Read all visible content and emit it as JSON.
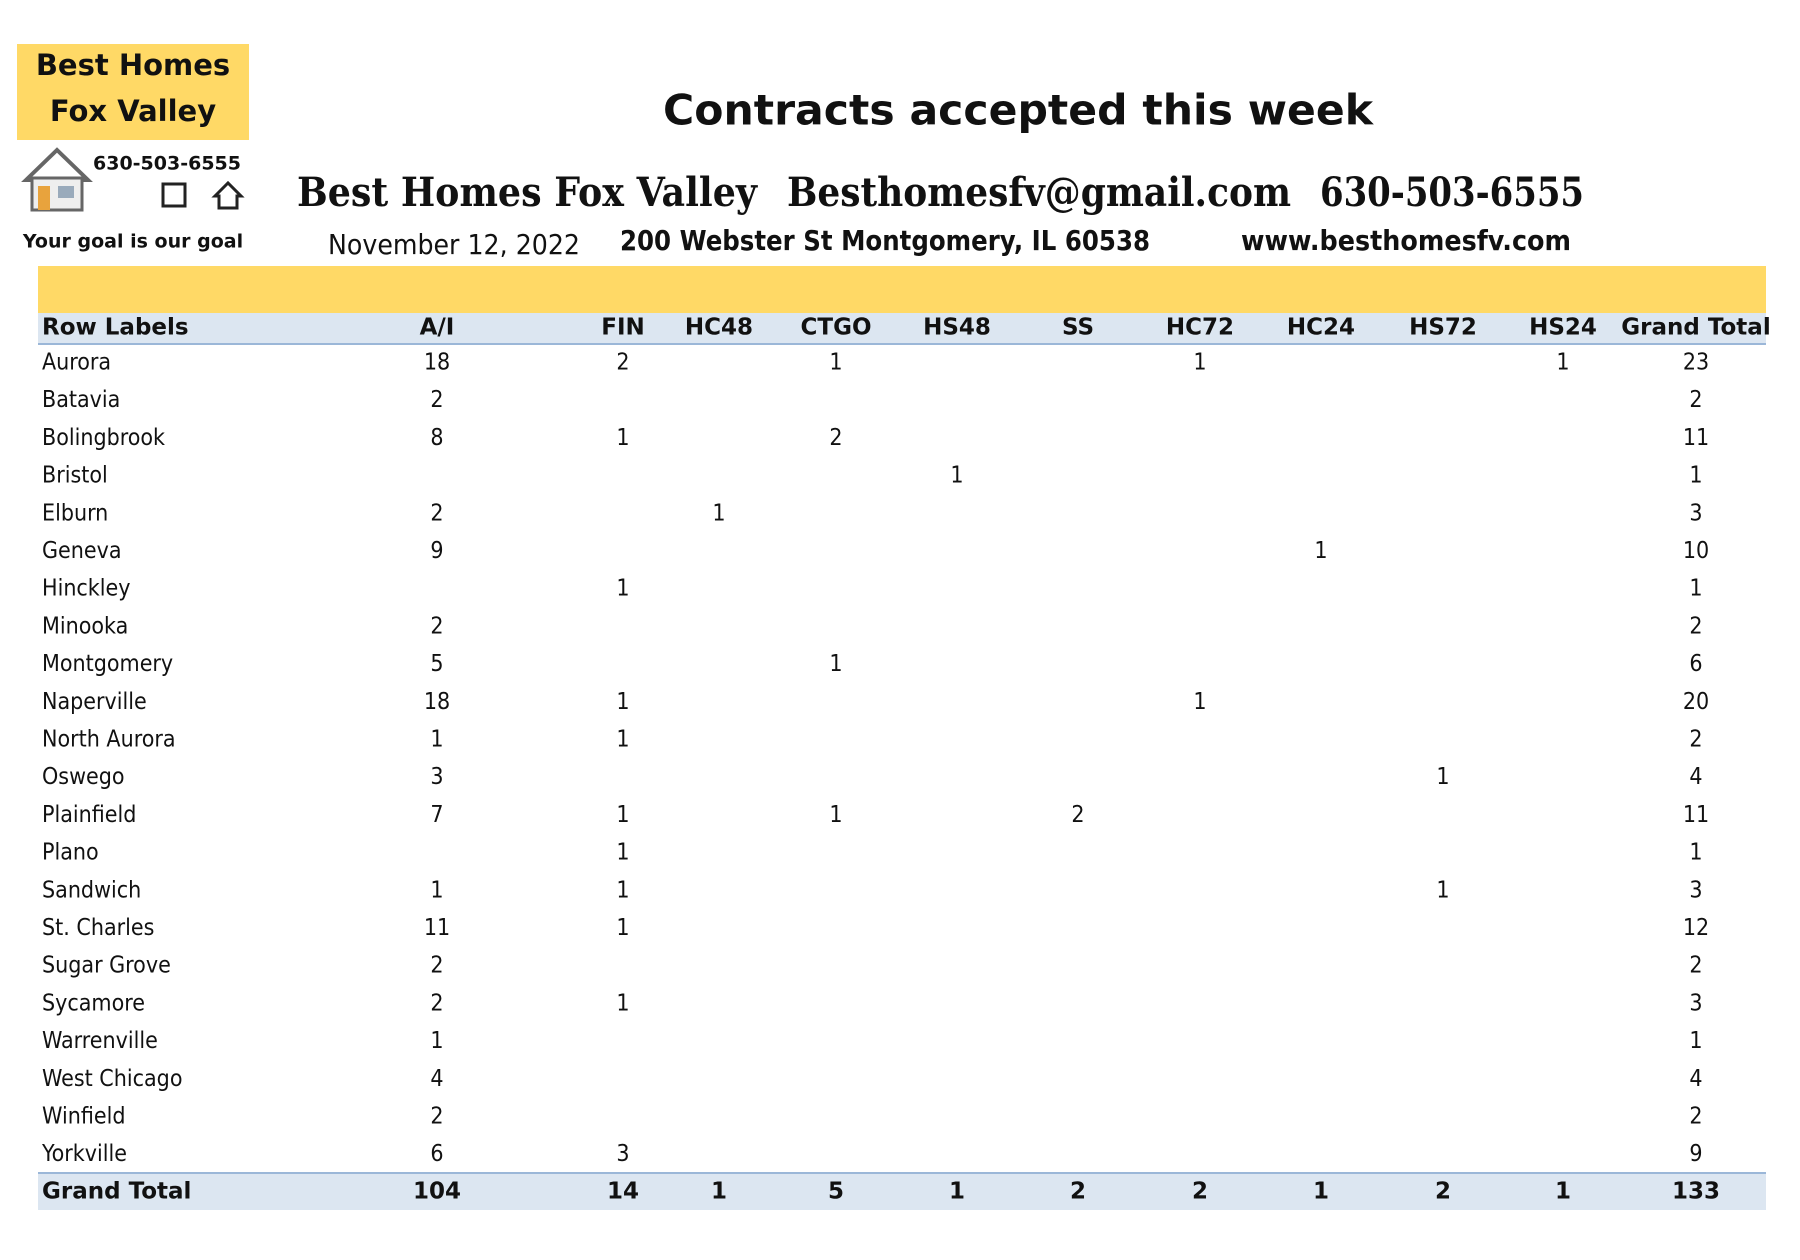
{
  "logo": {
    "line1": "Best Homes",
    "line2": "Fox Valley",
    "phone": "630-503-6555",
    "tagline": "Your goal is our goal"
  },
  "header": {
    "title": "Contracts accepted this week",
    "company": "Best Homes Fox Valley",
    "email": "Besthomesfv@gmail.com",
    "phone": "630-503-6555",
    "date": "November 12, 2022",
    "address": "200 Webster St Montgomery, IL 60538",
    "website": "www.besthomesfv.com"
  },
  "table": {
    "columns": [
      "Row Labels",
      "A/I",
      "FIN",
      "HC48",
      "CTGO",
      "HS48",
      "SS",
      "HC72",
      "HC24",
      "HS72",
      "HS24",
      "Grand Total"
    ],
    "rows": [
      [
        "Aurora",
        18,
        2,
        null,
        1,
        null,
        null,
        1,
        null,
        null,
        1,
        23
      ],
      [
        "Batavia",
        2,
        null,
        null,
        null,
        null,
        null,
        null,
        null,
        null,
        null,
        2
      ],
      [
        "Bolingbrook",
        8,
        1,
        null,
        2,
        null,
        null,
        null,
        null,
        null,
        null,
        11
      ],
      [
        "Bristol",
        null,
        null,
        null,
        null,
        1,
        null,
        null,
        null,
        null,
        null,
        1
      ],
      [
        "Elburn",
        2,
        null,
        1,
        null,
        null,
        null,
        null,
        null,
        null,
        null,
        3
      ],
      [
        "Geneva",
        9,
        null,
        null,
        null,
        null,
        null,
        null,
        1,
        null,
        null,
        10
      ],
      [
        "Hinckley",
        null,
        1,
        null,
        null,
        null,
        null,
        null,
        null,
        null,
        null,
        1
      ],
      [
        "Minooka",
        2,
        null,
        null,
        null,
        null,
        null,
        null,
        null,
        null,
        null,
        2
      ],
      [
        "Montgomery",
        5,
        null,
        null,
        1,
        null,
        null,
        null,
        null,
        null,
        null,
        6
      ],
      [
        "Naperville",
        18,
        1,
        null,
        null,
        null,
        null,
        1,
        null,
        null,
        null,
        20
      ],
      [
        "North Aurora",
        1,
        1,
        null,
        null,
        null,
        null,
        null,
        null,
        null,
        null,
        2
      ],
      [
        "Oswego",
        3,
        null,
        null,
        null,
        null,
        null,
        null,
        null,
        1,
        null,
        4
      ],
      [
        "Plainfield",
        7,
        1,
        null,
        1,
        null,
        2,
        null,
        null,
        null,
        null,
        11
      ],
      [
        "Plano",
        null,
        1,
        null,
        null,
        null,
        null,
        null,
        null,
        null,
        null,
        1
      ],
      [
        "Sandwich",
        1,
        1,
        null,
        null,
        null,
        null,
        null,
        null,
        1,
        null,
        3
      ],
      [
        "St. Charles",
        11,
        1,
        null,
        null,
        null,
        null,
        null,
        null,
        null,
        null,
        12
      ],
      [
        "Sugar Grove",
        2,
        null,
        null,
        null,
        null,
        null,
        null,
        null,
        null,
        null,
        2
      ],
      [
        "Sycamore",
        2,
        1,
        null,
        null,
        null,
        null,
        null,
        null,
        null,
        null,
        3
      ],
      [
        "Warrenville",
        1,
        null,
        null,
        null,
        null,
        null,
        null,
        null,
        null,
        null,
        1
      ],
      [
        "West Chicago",
        4,
        null,
        null,
        null,
        null,
        null,
        null,
        null,
        null,
        null,
        4
      ],
      [
        "Winfield",
        2,
        null,
        null,
        null,
        null,
        null,
        null,
        null,
        null,
        null,
        2
      ],
      [
        "Yorkville",
        6,
        3,
        null,
        null,
        null,
        null,
        null,
        null,
        null,
        null,
        9
      ]
    ],
    "total": [
      "Grand Total",
      104,
      14,
      1,
      5,
      1,
      2,
      2,
      1,
      2,
      1,
      133
    ]
  }
}
